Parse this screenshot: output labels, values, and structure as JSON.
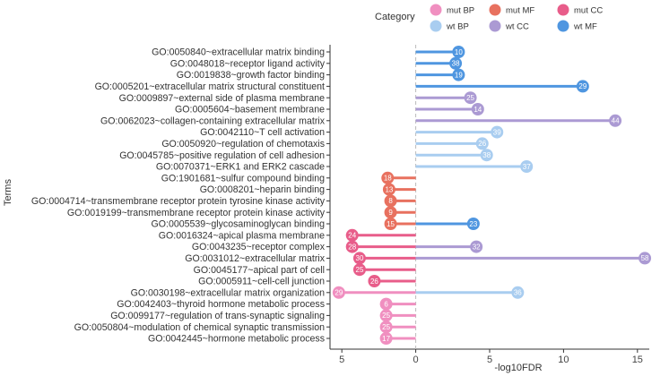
{
  "chart_data": {
    "type": "lollipop",
    "xlabel": "-log10FDR",
    "ylabel": "Terms",
    "x_ticks": [
      "5",
      "0",
      "5",
      "10",
      "15"
    ],
    "x_tick_values": [
      -5,
      0,
      5,
      10,
      15
    ],
    "xlim": [
      -5.8,
      15.8
    ],
    "note": "mut categories are plotted to the left of 0 (value shown as negative position), wt categories to the right; tick labels show absolute values",
    "legend": {
      "title": "Category",
      "placement": "top",
      "items": [
        {
          "key": "mutBP",
          "label": "mut BP",
          "color": "#f08fc0"
        },
        {
          "key": "mutMF",
          "label": "mut MF",
          "color": "#e8715f"
        },
        {
          "key": "mutCC",
          "label": "mut CC",
          "color": "#e85d8a"
        },
        {
          "key": "wtBP",
          "label": "wt BP",
          "color": "#a9cdf0"
        },
        {
          "key": "wtCC",
          "label": "wt CC",
          "color": "#ab9ad3"
        },
        {
          "key": "wtMF",
          "label": "wt MF",
          "color": "#4f96e0"
        }
      ]
    },
    "terms": [
      "GO:0050840~extracellular matrix binding",
      "GO:0048018~receptor ligand activity",
      "GO:0019838~growth factor binding",
      "GO:0005201~extracellular matrix structural constituent",
      "GO:0009897~external side of plasma membrane",
      "GO:0005604~basement membrane",
      "GO:0062023~collagen-containing extracellular matrix",
      "GO:0042110~T cell activation",
      "GO:0050920~regulation of chemotaxis",
      "GO:0045785~positive regulation of cell adhesion",
      "GO:0070371~ERK1 and ERK2 cascade",
      "GO:1901681~sulfur compound binding",
      "GO:0008201~heparin binding",
      "GO:0004714~transmembrane receptor protein tyrosine kinase activity",
      "GO:0019199~transmembrane receptor protein kinase activity",
      "GO:0005539~glycosaminoglycan binding",
      "GO:0016324~apical plasma membrane",
      "GO:0043235~receptor complex",
      "GO:0031012~extracellular matrix",
      "GO:0045177~apical part of cell",
      "GO:0005911~cell-cell junction",
      "GO:0030198~extracellular matrix organization",
      "GO:0042403~thyroid hormone metabolic process",
      "GO:0099177~regulation of trans-synaptic signaling",
      "GO:0050804~modulation of chemical synaptic transmission",
      "GO:0042445~hormone metabolic process"
    ],
    "points": [
      {
        "term": 0,
        "category": "wtMF",
        "value": 2.9,
        "count": "10"
      },
      {
        "term": 1,
        "category": "wtMF",
        "value": 2.7,
        "count": "38"
      },
      {
        "term": 2,
        "category": "wtMF",
        "value": 2.9,
        "count": "19"
      },
      {
        "term": 3,
        "category": "wtMF",
        "value": 11.3,
        "count": "29"
      },
      {
        "term": 4,
        "category": "wtCC",
        "value": 3.7,
        "count": "25"
      },
      {
        "term": 5,
        "category": "wtCC",
        "value": 4.2,
        "count": "14"
      },
      {
        "term": 6,
        "category": "wtCC",
        "value": 13.5,
        "count": "44"
      },
      {
        "term": 7,
        "category": "wtBP",
        "value": 5.5,
        "count": "39"
      },
      {
        "term": 8,
        "category": "wtBP",
        "value": 4.5,
        "count": "26"
      },
      {
        "term": 9,
        "category": "wtBP",
        "value": 4.8,
        "count": "38"
      },
      {
        "term": 10,
        "category": "wtBP",
        "value": 7.5,
        "count": "37"
      },
      {
        "term": 11,
        "category": "mutMF",
        "value": -1.9,
        "count": "18"
      },
      {
        "term": 12,
        "category": "mutMF",
        "value": -1.8,
        "count": "13"
      },
      {
        "term": 13,
        "category": "mutMF",
        "value": -1.7,
        "count": "8"
      },
      {
        "term": 14,
        "category": "mutMF",
        "value": -1.7,
        "count": "9"
      },
      {
        "term": 15,
        "category": "mutMF",
        "value": -1.7,
        "count": "15"
      },
      {
        "term": 15,
        "category": "wtMF",
        "value": 3.9,
        "count": "23"
      },
      {
        "term": 16,
        "category": "mutCC",
        "value": -4.3,
        "count": "24"
      },
      {
        "term": 17,
        "category": "mutCC",
        "value": -4.3,
        "count": "28"
      },
      {
        "term": 17,
        "category": "wtCC",
        "value": 4.1,
        "count": "32"
      },
      {
        "term": 18,
        "category": "mutCC",
        "value": -3.8,
        "count": "30"
      },
      {
        "term": 18,
        "category": "wtCC",
        "value": 15.5,
        "count": "58"
      },
      {
        "term": 19,
        "category": "mutCC",
        "value": -3.8,
        "count": "25"
      },
      {
        "term": 20,
        "category": "mutCC",
        "value": -2.8,
        "count": "26"
      },
      {
        "term": 21,
        "category": "mutBP",
        "value": -5.2,
        "count": "29"
      },
      {
        "term": 21,
        "category": "wtBP",
        "value": 6.9,
        "count": "36"
      },
      {
        "term": 22,
        "category": "mutBP",
        "value": -2.0,
        "count": "6"
      },
      {
        "term": 23,
        "category": "mutBP",
        "value": -2.0,
        "count": "25"
      },
      {
        "term": 24,
        "category": "mutBP",
        "value": -2.0,
        "count": "25"
      },
      {
        "term": 25,
        "category": "mutBP",
        "value": -2.0,
        "count": "17"
      }
    ]
  }
}
